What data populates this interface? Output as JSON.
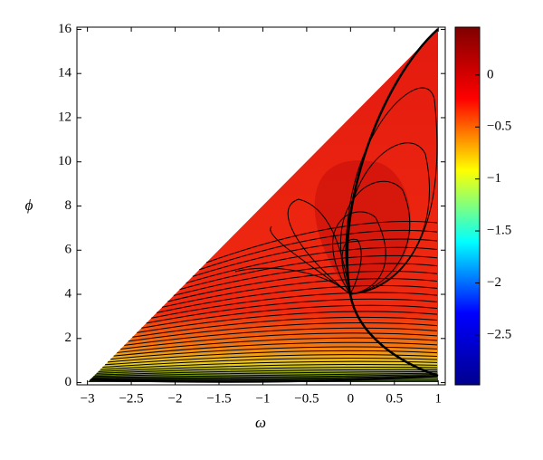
{
  "chart_data": {
    "type": "contour",
    "x_label": "ω",
    "y_label": "ϕ",
    "colormap": "jet",
    "xlim": [
      -3.12,
      1.08
    ],
    "ylim": [
      -0.1,
      16.1
    ],
    "xticks": [
      {
        "value": -3,
        "label": "−3"
      },
      {
        "value": -2.5,
        "label": "−2.5"
      },
      {
        "value": -2,
        "label": "−2"
      },
      {
        "value": -1.5,
        "label": "−1.5"
      },
      {
        "value": -1,
        "label": "−1"
      },
      {
        "value": -0.5,
        "label": "−0.5"
      },
      0,
      0.5,
      1
    ],
    "yticks": [
      0,
      2,
      4,
      6,
      8,
      10,
      12,
      14,
      16
    ],
    "clim": [
      -2.98,
      0.46
    ],
    "cticks": [
      0,
      {
        "value": -0.5,
        "label": "−0.5"
      },
      {
        "value": -1,
        "label": "−1"
      },
      {
        "value": -1.5,
        "label": "−1.5"
      },
      {
        "value": -2,
        "label": "−2"
      },
      {
        "value": -2.5,
        "label": "−2.5"
      }
    ]
  }
}
